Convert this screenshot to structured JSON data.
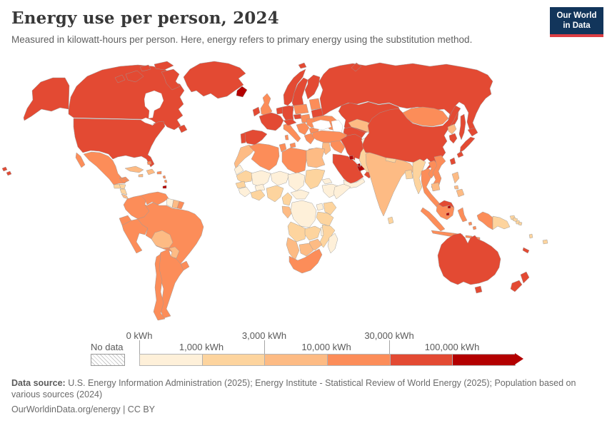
{
  "header": {
    "title": "Energy use per person, 2024",
    "subtitle": "Measured in kilowatt-hours per person. Here, energy refers to primary energy using the substitution method."
  },
  "logo": {
    "line1": "Our World",
    "line2": "in Data",
    "bg": "#12355b",
    "accent": "#dc3e43"
  },
  "legend": {
    "no_data_label": "No data",
    "ticks_top": [
      "0 kWh",
      "3,000 kWh",
      "30,000 kWh"
    ],
    "ticks_bottom": [
      "1,000 kWh",
      "10,000 kWh",
      "100,000 kWh"
    ],
    "colors": [
      "#fef0d9",
      "#fdd49e",
      "#fdbb84",
      "#fc8d59",
      "#e34a33",
      "#b30000"
    ]
  },
  "footer": {
    "source_label": "Data source:",
    "source_text": " U.S. Energy Information Administration (2025); Energy Institute - Statistical Review of World Energy (2025); Population based on various sources (2024)",
    "credit": "OurWorldinData.org/energy | CC BY"
  },
  "chart_data": {
    "type": "heatmap",
    "subtype": "choropleth-world-map",
    "title": "Energy use per person, 2024",
    "unit": "kWh per person",
    "legend_position": "bottom",
    "bins": [
      {
        "label": "0 kWh – 1,000 kWh",
        "color": "#fef0d9"
      },
      {
        "label": "1,000 kWh – 3,000 kWh",
        "color": "#fdd49e"
      },
      {
        "label": "3,000 kWh – 10,000 kWh",
        "color": "#fdbb84"
      },
      {
        "label": "10,000 kWh – 30,000 kWh",
        "color": "#fc8d59"
      },
      {
        "label": "30,000 kWh – 100,000 kWh",
        "color": "#e34a33"
      },
      {
        "label": "100,000 kWh +",
        "color": "#b30000"
      },
      {
        "label": "No data",
        "color": "hatched"
      }
    ],
    "country_bins": {
      "canada": 5,
      "united-states": 5,
      "greenland": 5,
      "iceland": 6,
      "mexico": 4,
      "guatemala": 2,
      "honduras": 2,
      "nicaragua": 2,
      "costa-rica": 3,
      "panama": 3,
      "cuba": 3,
      "jamaica": 3,
      "hispaniola": 3,
      "puerto-rico": 4,
      "bahamas": 4,
      "lesser-antilles": 4,
      "trinidad-and-tobago": 6,
      "colombia": 4,
      "venezuela": 4,
      "guyana": 1,
      "suriname": 3,
      "french-guiana": 4,
      "ecuador": 4,
      "peru": 4,
      "brazil": 4,
      "bolivia": 3,
      "paraguay": 3,
      "uruguay": 4,
      "argentina": 4,
      "chile": 4,
      "norway": 5,
      "sweden": 5,
      "finland": 5,
      "denmark": 5,
      "united-kingdom": 4,
      "ireland": 5,
      "benelux": 5,
      "germany": 5,
      "france": 5,
      "spain": 5,
      "portugal": 5,
      "italy": 4,
      "alpine-states": 5,
      "czechia": 5,
      "poland": 4,
      "hungary-slovakia": 4,
      "balkans": 4,
      "romania": 4,
      "bulgaria": 4,
      "greece": 4,
      "baltics": 4,
      "belarus": 5,
      "ukraine": 4,
      "russia": 5,
      "kazakhstan": 5,
      "uzbekistan": 3,
      "turkmenistan": 5,
      "kyrgyzstan-tajikistan": 3,
      "caucasus": 4,
      "turkey": 4,
      "levant": 3,
      "iraq": 4,
      "saudi-arabia": 5,
      "kuwait": 6,
      "uae-qatar": 6,
      "oman": 5,
      "yemen": 1,
      "iran": 5,
      "afghanistan": 1,
      "pakistan": 2,
      "india": 3,
      "nepal": 2,
      "bangladesh": 2,
      "sri-lanka": 2,
      "myanmar": 2,
      "thailand": 4,
      "laos": 4,
      "cambodia": 3,
      "vietnam": 4,
      "malaysia": 5,
      "singapore": 6,
      "brunei": 6,
      "indonesia": 4,
      "philippines": 3,
      "papua-new-guinea": 2,
      "china": 5,
      "mongolia": 4,
      "north-korea": 3,
      "south-korea": 5,
      "japan": 5,
      "taiwan": 5,
      "morocco": 3,
      "western-sahara": 1,
      "algeria": 4,
      "tunisia": 4,
      "libya": 4,
      "egypt": 3,
      "mauritania": 2,
      "mali": 1,
      "burkina-faso": 1,
      "niger": 1,
      "chad": 1,
      "sudan": 2,
      "eritrea": 1,
      "ethiopia": 1,
      "somalia": 1,
      "senegal": 2,
      "guinea": 1,
      "ivory-coast-ghana": 2,
      "nigeria": 2,
      "cameroon": 2,
      "central-african-republic": 1,
      "gabon-congo": 3,
      "drc": 1,
      "uganda": 1,
      "kenya": 2,
      "tanzania": 2,
      "angola": 2,
      "zambia": 2,
      "malawi": 1,
      "mozambique": 2,
      "zimbabwe": 3,
      "botswana": 3,
      "namibia": 3,
      "south-africa": 4,
      "madagascar": 1,
      "australia": 5,
      "new-zealand": 5,
      "new-caledonia": 5,
      "fiji": 2,
      "vanuatu": 2,
      "solomon-islands": 2
    }
  }
}
